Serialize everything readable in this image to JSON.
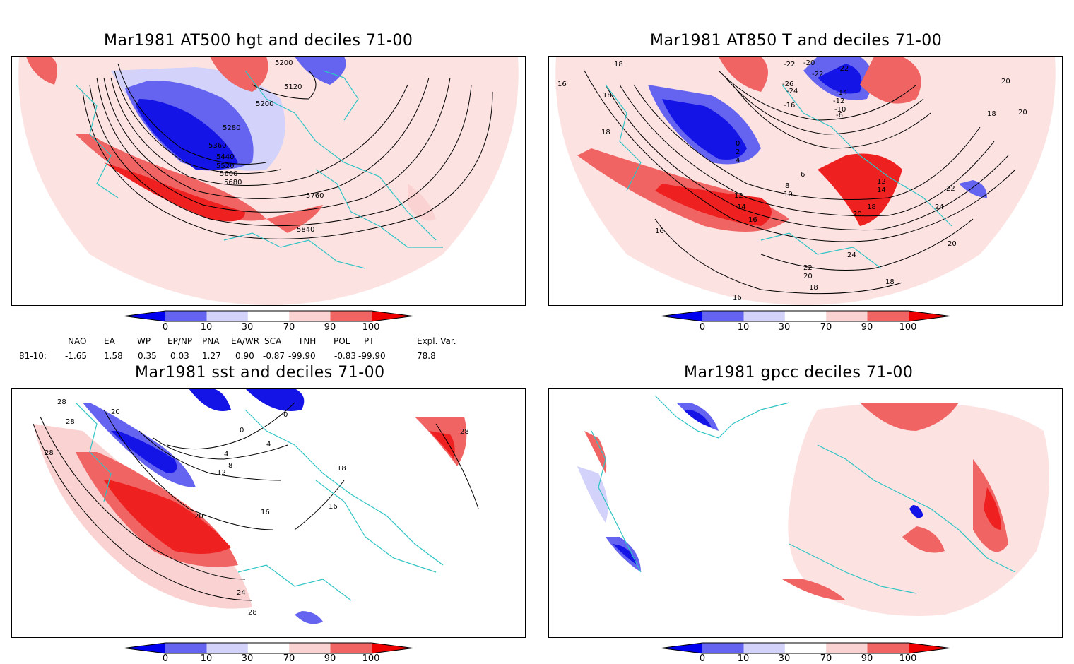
{
  "panels": [
    {
      "title": "Mar1981 AT500 hgt and deciles 71-00",
      "contour_labels": [
        "5200",
        "5120",
        "5200",
        "5280",
        "5360",
        "5440",
        "5520",
        "5600",
        "5680",
        "5760",
        "5840"
      ]
    },
    {
      "title": "Mar1981 AT850 T and deciles 71-00",
      "contour_labels": [
        "16",
        "18",
        "18",
        "18",
        "-22",
        "-20",
        "-22",
        "-22",
        "-26",
        "-24",
        "-16",
        "-14",
        "-12",
        "-10",
        "-6",
        "0",
        "2",
        "4",
        "6",
        "8",
        "10",
        "12",
        "14",
        "16",
        "12",
        "14",
        "18",
        "20",
        "18",
        "20",
        "22",
        "24",
        "20",
        "24",
        "22",
        "20",
        "18",
        "16",
        "18",
        "20",
        "16"
      ]
    },
    {
      "title": "Mar1981 sst and deciles 71-00",
      "contour_labels": [
        "28",
        "20",
        "28",
        "28",
        "0",
        "4",
        "0",
        "4",
        "8",
        "12",
        "16",
        "18",
        "16",
        "20",
        "24",
        "28",
        "28"
      ]
    },
    {
      "title": "Mar1981 gpcc deciles 71-00",
      "contour_labels": []
    }
  ],
  "colorbar": {
    "tick_labels": [
      "0",
      "10",
      "30",
      "70",
      "90",
      "100"
    ],
    "colors": [
      "#0000ee",
      "#6464f0",
      "#d2d2fa",
      "#ffffff",
      "#fad2d2",
      "#f06464",
      "#ee0000"
    ]
  },
  "indices": {
    "headers": [
      "NAO",
      "EA",
      "WP",
      "EP/NP",
      "PNA",
      "EA/WR",
      "SCA",
      "TNH",
      "POL",
      "PT",
      "Expl. Var."
    ],
    "row_label": "81-10:",
    "values": [
      "-1.65",
      "1.58",
      "0.35",
      "0.03",
      "1.27",
      "0.90",
      "-0.87",
      "-99.90",
      "-0.83",
      "-99.90",
      "78.8"
    ]
  }
}
